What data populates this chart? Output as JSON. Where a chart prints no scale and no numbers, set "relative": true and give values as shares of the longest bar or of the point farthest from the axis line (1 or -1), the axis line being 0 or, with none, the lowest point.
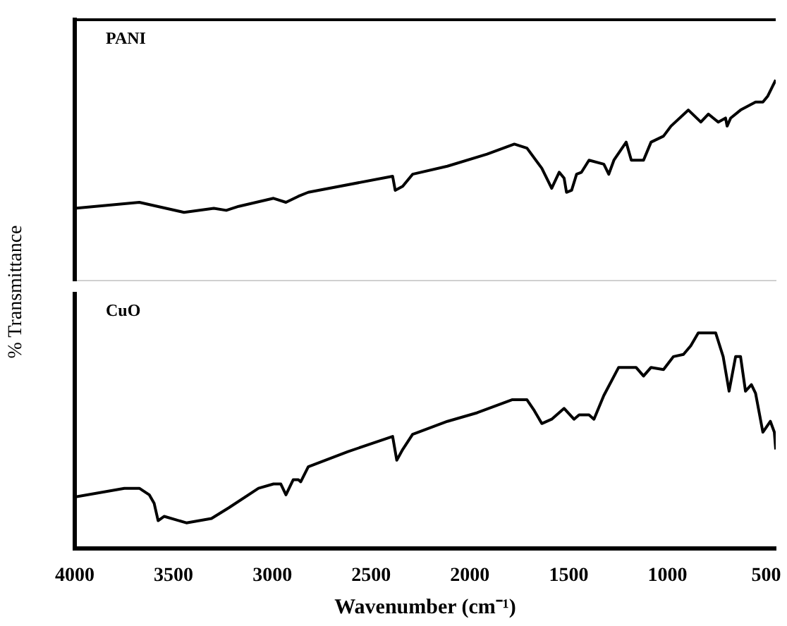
{
  "chart_data": [
    {
      "type": "line",
      "relative": true,
      "ylabel": "% Transmittance",
      "xlim": [
        4000,
        452
      ],
      "tick_labels": false,
      "marker": "none",
      "series": [
        {
          "name": "PANI",
          "color": "#000000",
          "x": [
            4000,
            3673,
            3447,
            3296,
            3233,
            3170,
            2994,
            2931,
            2868,
            2818,
            2391,
            2378,
            2340,
            2290,
            2114,
            1913,
            1775,
            1711,
            1636,
            1586,
            1548,
            1523,
            1511,
            1485,
            1460,
            1435,
            1397,
            1322,
            1297,
            1271,
            1209,
            1183,
            1121,
            1083,
            1020,
            982,
            894,
            831,
            793,
            743,
            706,
            698,
            680,
            630,
            554,
            517,
            492,
            467,
            452
          ],
          "values": [
            0.36,
            0.39,
            0.34,
            0.36,
            0.35,
            0.37,
            0.41,
            0.39,
            0.42,
            0.44,
            0.52,
            0.45,
            0.47,
            0.53,
            0.57,
            0.63,
            0.68,
            0.66,
            0.56,
            0.46,
            0.54,
            0.51,
            0.44,
            0.45,
            0.53,
            0.54,
            0.6,
            0.58,
            0.53,
            0.6,
            0.69,
            0.6,
            0.6,
            0.69,
            0.72,
            0.77,
            0.85,
            0.79,
            0.83,
            0.79,
            0.81,
            0.77,
            0.81,
            0.85,
            0.89,
            0.89,
            0.92,
            0.97,
            1
          ]
        }
      ]
    },
    {
      "type": "line",
      "relative": true,
      "xlabel": "Wavenumber (cm⁻¹)",
      "xlim": [
        4000,
        452
      ],
      "xticks": [
        4000,
        3500,
        3000,
        2500,
        2000,
        1500,
        1000,
        500
      ],
      "tick_labels": "x",
      "marker": "none",
      "series": [
        {
          "name": "CuO",
          "color": "#000000",
          "x": [
            4000,
            3749,
            3673,
            3623,
            3598,
            3578,
            3547,
            3435,
            3308,
            3220,
            3070,
            2994,
            2957,
            2931,
            2894,
            2868,
            2856,
            2818,
            2617,
            2391,
            2370,
            2340,
            2290,
            2114,
            1963,
            1787,
            1711,
            1674,
            1636,
            1586,
            1523,
            1473,
            1447,
            1397,
            1372,
            1322,
            1247,
            1159,
            1121,
            1083,
            1020,
            970,
            919,
            882,
            844,
            756,
            718,
            688,
            655,
            630,
            605,
            575,
            554,
            517,
            479,
            459,
            452
          ],
          "values": [
            0.24,
            0.28,
            0.28,
            0.25,
            0.21,
            0.13,
            0.15,
            0.12,
            0.14,
            0.19,
            0.28,
            0.3,
            0.3,
            0.25,
            0.32,
            0.32,
            0.31,
            0.38,
            0.45,
            0.52,
            0.41,
            0.46,
            0.53,
            0.59,
            0.63,
            0.69,
            0.69,
            0.64,
            0.58,
            0.6,
            0.65,
            0.6,
            0.62,
            0.62,
            0.6,
            0.71,
            0.84,
            0.84,
            0.8,
            0.84,
            0.83,
            0.89,
            0.9,
            0.94,
            1,
            1,
            0.89,
            0.73,
            0.89,
            0.89,
            0.73,
            0.76,
            0.72,
            0.54,
            0.59,
            0.54,
            0.46
          ]
        }
      ]
    }
  ]
}
